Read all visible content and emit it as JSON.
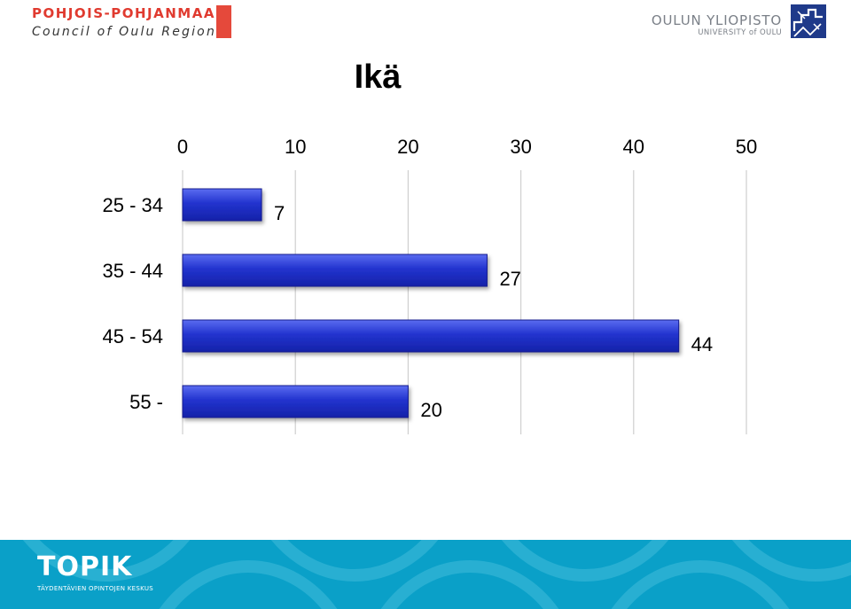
{
  "header": {
    "left_logo_line1": "POHJOIS-POHJANMAA",
    "left_logo_line2": "Council of Oulu Region",
    "right_logo_line1": "OULUN YLIOPISTO",
    "right_logo_line2": "UNIVERSITY of OULU",
    "accent_red": "#e5493b",
    "logo_gray": "#7b8088"
  },
  "chart_data": {
    "type": "bar",
    "orientation": "horizontal",
    "title": "Ikä",
    "categories": [
      "25 - 34",
      "35 - 44",
      "45 - 54",
      "55 -"
    ],
    "values": [
      7,
      27,
      44,
      20
    ],
    "xlim": [
      0,
      50
    ],
    "xticks": [
      0,
      10,
      20,
      30,
      40,
      50
    ],
    "x_axis_position": "top",
    "grid": true,
    "data_labels": true,
    "bar_color": "#1f2fc8",
    "legend": "none"
  },
  "footer": {
    "brand": "TOPIK",
    "tagline": "TÄYDENTÄVIEN OPINTOJEN KESKUS",
    "background": "#0aa0c8"
  }
}
